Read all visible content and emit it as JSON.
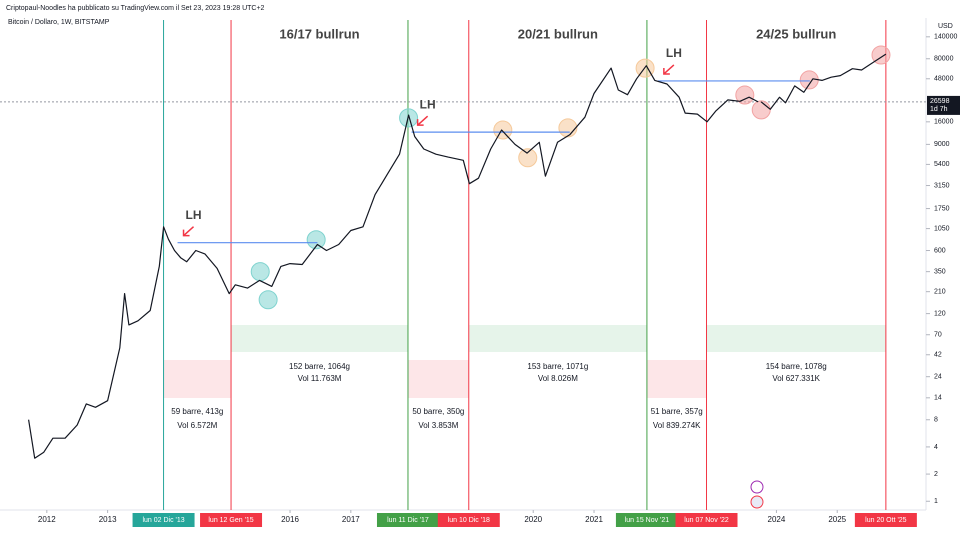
{
  "chart_data": {
    "type": "line",
    "header": "Criptopaul-Noodles ha pubblicato su TradingView.com il Set 23, 2023 19:28 UTC+2",
    "title": "Bitcoin / Dollaro, 1W, BITSTAMP",
    "y_unit": "USD",
    "log_scale": true,
    "grid": false,
    "xlim": [
      2011.23,
      2026.46
    ],
    "ylim": [
      0.8,
      215000
    ],
    "xticks": [
      2012,
      2013,
      2016,
      2017,
      2020,
      2021,
      2024,
      2025
    ],
    "yticks": [
      1,
      2,
      4,
      8,
      14,
      24,
      42,
      70,
      120,
      210,
      350,
      600,
      1050,
      1750,
      3150,
      5400,
      9000,
      16000,
      48000,
      80000,
      140000
    ],
    "current_price": 26598,
    "countdown": "1d 7h",
    "series": [
      {
        "name": "BTCUSD",
        "color": "#131722",
        "x": [
          2011.7,
          2011.8,
          2011.95,
          2012.1,
          2012.3,
          2012.5,
          2012.65,
          2012.8,
          2013.0,
          2013.2,
          2013.28,
          2013.35,
          2013.5,
          2013.7,
          2013.85,
          2013.92,
          2014.0,
          2014.1,
          2014.2,
          2014.3,
          2014.45,
          2014.6,
          2014.8,
          2015.0,
          2015.1,
          2015.3,
          2015.5,
          2015.7,
          2015.85,
          2016.0,
          2016.2,
          2016.45,
          2016.6,
          2016.8,
          2017.0,
          2017.2,
          2017.4,
          2017.6,
          2017.8,
          2017.95,
          2018.05,
          2018.2,
          2018.4,
          2018.6,
          2018.85,
          2018.95,
          2019.1,
          2019.3,
          2019.48,
          2019.7,
          2019.9,
          2020.1,
          2020.2,
          2020.4,
          2020.6,
          2020.85,
          2021.0,
          2021.28,
          2021.4,
          2021.55,
          2021.7,
          2021.86,
          2022.0,
          2022.2,
          2022.4,
          2022.5,
          2022.7,
          2022.86,
          2023.0,
          2023.2,
          2023.4,
          2023.55,
          2023.7
        ],
        "values": [
          8,
          3,
          3.5,
          5,
          5,
          7,
          12,
          11,
          13,
          50,
          200,
          90,
          100,
          130,
          400,
          1100,
          800,
          600,
          500,
          450,
          600,
          550,
          380,
          200,
          250,
          230,
          280,
          240,
          400,
          430,
          420,
          700,
          600,
          700,
          1000,
          1100,
          2500,
          4200,
          7000,
          19000,
          11000,
          8000,
          7000,
          6500,
          6000,
          3300,
          3800,
          8000,
          13000,
          9000,
          7200,
          9500,
          4000,
          9500,
          11500,
          18000,
          33000,
          63000,
          36000,
          32000,
          48000,
          67000,
          46000,
          42000,
          30000,
          20000,
          19500,
          16000,
          21000,
          28000,
          27000,
          30000,
          26598
        ]
      },
      {
        "name": "Projection",
        "color": "#131722",
        "x": [
          2023.75,
          2023.9,
          2024.05,
          2024.15,
          2024.3,
          2024.45,
          2024.6,
          2024.75,
          2024.9,
          2025.05,
          2025.25,
          2025.4,
          2025.55,
          2025.8
        ],
        "values": [
          26598,
          22000,
          30000,
          26000,
          40000,
          34000,
          48000,
          46000,
          50000,
          52000,
          62000,
          60000,
          70000,
          90000
        ]
      }
    ],
    "levels": [
      {
        "label": "LH",
        "value": 733,
        "start": 2014.15,
        "end": 2016.45,
        "color": "#5b8def"
      },
      {
        "label": "LH",
        "value": 12300,
        "start": 2018.0,
        "end": 2020.6,
        "color": "#5b8def"
      },
      {
        "label": "LH",
        "value": 45400,
        "start": 2022.05,
        "end": 2024.55,
        "color": "#5b8def"
      }
    ],
    "highlights": [
      {
        "x": 2015.51,
        "value": 350,
        "color": "#7fd3cf"
      },
      {
        "x": 2015.64,
        "value": 171,
        "color": "#7fd3cf"
      },
      {
        "x": 2016.43,
        "value": 790,
        "color": "#7fd3cf"
      },
      {
        "x": 2017.95,
        "value": 17700,
        "color": "#7fd3cf"
      },
      {
        "x": 2019.5,
        "value": 13000,
        "color": "#f5c99a"
      },
      {
        "x": 2019.91,
        "value": 6400,
        "color": "#f5c99a"
      },
      {
        "x": 2020.57,
        "value": 13700,
        "color": "#f5c99a"
      },
      {
        "x": 2021.84,
        "value": 63000,
        "color": "#f5c99a"
      },
      {
        "x": 2023.48,
        "value": 31700,
        "color": "#f2a3a3"
      },
      {
        "x": 2023.75,
        "value": 21700,
        "color": "#f2a3a3"
      },
      {
        "x": 2024.54,
        "value": 46600,
        "color": "#f2a3a3"
      },
      {
        "x": 2025.72,
        "value": 88000,
        "color": "#f2a3a3"
      }
    ],
    "events": [
      {
        "x": 2013.92,
        "label": "lun 02 Dic '13",
        "color": "#26a69a"
      },
      {
        "x": 2015.03,
        "label": "lun 12 Gen '15",
        "color": "#f23645"
      },
      {
        "x": 2017.94,
        "label": "lun 11 Dic '17",
        "color": "#43a047"
      },
      {
        "x": 2018.94,
        "label": "lun 10 Dic '18",
        "color": "#f23645"
      },
      {
        "x": 2021.87,
        "label": "lun 15 Nov '21",
        "color": "#43a047"
      },
      {
        "x": 2022.85,
        "label": "lun 07 Nov '22",
        "color": "#f23645"
      },
      {
        "x": 2025.8,
        "label": "lun 20 Ott '25",
        "color": "#f23645"
      }
    ],
    "phases": [
      {
        "start": 2013.92,
        "end": 2015.03,
        "kind": "bear",
        "color": "#fde6e8",
        "bars": "59 barre, 413g",
        "volume": "Vol 6.572M"
      },
      {
        "start": 2015.03,
        "end": 2017.94,
        "kind": "bull",
        "color": "#e6f4ea",
        "bars": "152 barre, 1064g",
        "volume": "Vol 11.763M",
        "title": "16/17 bullrun"
      },
      {
        "start": 2017.94,
        "end": 2018.94,
        "kind": "bear",
        "color": "#fde6e8",
        "bars": "50 barre, 350g",
        "volume": "Vol 3.853M"
      },
      {
        "start": 2018.94,
        "end": 2021.87,
        "kind": "bull",
        "color": "#e6f4ea",
        "bars": "153 barre, 1071g",
        "volume": "Vol 8.026M",
        "title": "20/21 bullrun"
      },
      {
        "start": 2021.87,
        "end": 2022.85,
        "kind": "bear",
        "color": "#fde6e8",
        "bars": "51 barre, 357g",
        "volume": "Vol 839.274K"
      },
      {
        "start": 2022.85,
        "end": 2025.8,
        "kind": "bull",
        "color": "#e6f4ea",
        "bars": "154 barre, 1078g",
        "volume": "Vol 627.331K",
        "title": "24/25 bullrun"
      }
    ]
  }
}
